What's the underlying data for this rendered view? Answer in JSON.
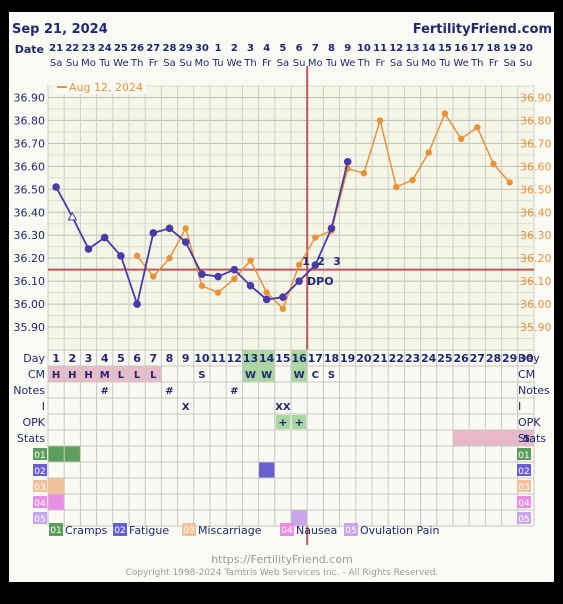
{
  "header": {
    "date": "Sep 21, 2024",
    "site": "FertilityFriend.com",
    "date_label": "Date"
  },
  "days_of_month": [
    "21",
    "22",
    "23",
    "24",
    "25",
    "26",
    "27",
    "28",
    "29",
    "30",
    "1",
    "2",
    "3",
    "4",
    "5",
    "6",
    "7",
    "8",
    "9",
    "10",
    "11",
    "12",
    "13",
    "14",
    "15",
    "16",
    "17",
    "18",
    "19",
    "20"
  ],
  "weekdays": [
    "Sa",
    "Su",
    "Mo",
    "Tu",
    "We",
    "Th",
    "Fr",
    "Sa",
    "Su",
    "Mo",
    "Tu",
    "We",
    "Th",
    "Fr",
    "Sa",
    "Su",
    "Mo",
    "Tu",
    "We",
    "Th",
    "Fr",
    "Sa",
    "Su",
    "Mo",
    "Tu",
    "We",
    "Th",
    "Fr",
    "Sa",
    "Su"
  ],
  "y_ticks": [
    "36.90",
    "36.80",
    "36.70",
    "36.60",
    "36.50",
    "36.40",
    "36.30",
    "36.20",
    "36.10",
    "36.00",
    "35.90"
  ],
  "legend_comparison": "Aug 12, 2024",
  "dpo_label": "DPO",
  "dpo_numbers": [
    "1",
    "2",
    "3"
  ],
  "row_labels": {
    "day": "Day",
    "cm": "CM",
    "notes": "Notes",
    "i": "I",
    "opk": "OPK",
    "stats": "Stats",
    "s1": "01",
    "s2": "02",
    "s3": "03",
    "s4": "04",
    "s5": "05"
  },
  "cycle_days": [
    "1",
    "2",
    "3",
    "4",
    "5",
    "6",
    "7",
    "8",
    "9",
    "10",
    "11",
    "12",
    "13",
    "14",
    "15",
    "16",
    "17",
    "18",
    "19",
    "20",
    "21",
    "22",
    "23",
    "24",
    "25",
    "26",
    "27",
    "28",
    "29",
    "30"
  ],
  "cm_values": [
    "H",
    "H",
    "H",
    "M",
    "L",
    "L",
    "L",
    "",
    "",
    "S",
    "",
    "",
    "W",
    "W",
    "",
    "W",
    "C",
    "S",
    "",
    "",
    "",
    "",
    "",
    "",
    "",
    "",
    "",
    "",
    "",
    ""
  ],
  "notes_marks": [
    "",
    "",
    "",
    "#",
    "",
    "",
    "",
    "#",
    "",
    "",
    "",
    "#",
    "",
    "",
    "",
    "",
    "",
    "",
    "",
    "",
    "",
    "",
    "",
    "",
    "",
    "",
    "",
    "",
    "",
    ""
  ],
  "i_marks": [
    "",
    "",
    "",
    "",
    "",
    "",
    "",
    "",
    "X",
    "",
    "",
    "",
    "",
    "",
    "XX",
    "",
    "",
    "",
    "",
    "",
    "",
    "",
    "",
    "",
    "",
    "",
    "",
    "",
    "",
    ""
  ],
  "opk_marks": [
    "",
    "",
    "",
    "",
    "",
    "",
    "",
    "",
    "",
    "",
    "",
    "",
    "",
    "",
    "+",
    "+",
    "",
    "",
    "",
    "",
    "",
    "",
    "",
    "",
    "",
    "",
    "",
    "",
    "",
    ""
  ],
  "stats_value": "5",
  "symptoms": [
    {
      "code": "01",
      "name": "Cramps",
      "color": "#5e9e5c"
    },
    {
      "code": "02",
      "name": "Fatigue",
      "color": "#6a5fd0"
    },
    {
      "code": "03",
      "name": "Miscarriage",
      "color": "#f2c19a"
    },
    {
      "code": "04",
      "name": "Nausea",
      "color": "#e98de6"
    },
    {
      "code": "05",
      "name": "Ovulation Pain",
      "color": "#c9a6ec"
    }
  ],
  "footer": {
    "url": "https://FertilityFriend.com",
    "copyright": "Copyright 1998-2024 Tamtris Web Services Inc. - All Rights Reserved."
  },
  "colors": {
    "current": "#4a3aa8",
    "comparison": "#e8923a",
    "coverline": "#c0565a",
    "ovulation": "#c0565a",
    "highlight": "#a8d8a0",
    "cm_fill": "#e8bcc8",
    "stats_fill": "#e8b8c8"
  },
  "chart_data": {
    "type": "line",
    "x_label": "Day",
    "ylim": [
      35.8,
      36.95
    ],
    "coverline": 36.15,
    "ovulation_day": 16,
    "highlighted_days": [
      13,
      14,
      16
    ],
    "series": [
      {
        "name": "",
        "role": "current",
        "points": [
          [
            1,
            36.51
          ],
          [
            2,
            36.38
          ],
          [
            3,
            36.24
          ],
          [
            4,
            36.29
          ],
          [
            5,
            36.21
          ],
          [
            6,
            36.0
          ],
          [
            7,
            36.31
          ],
          [
            8,
            36.33
          ],
          [
            9,
            36.27
          ],
          [
            10,
            36.13
          ],
          [
            11,
            36.12
          ],
          [
            12,
            36.15
          ],
          [
            13,
            36.08
          ],
          [
            14,
            36.02
          ],
          [
            15,
            36.03
          ],
          [
            16,
            36.1
          ],
          [
            17,
            36.17
          ],
          [
            18,
            36.33
          ],
          [
            19,
            36.62
          ]
        ],
        "open_points": [
          2
        ]
      },
      {
        "name": "Aug 12, 2024",
        "role": "comparison",
        "points": [
          [
            6,
            36.21
          ],
          [
            7,
            36.12
          ],
          [
            8,
            36.2
          ],
          [
            9,
            36.33
          ],
          [
            10,
            36.08
          ],
          [
            11,
            36.05
          ],
          [
            12,
            36.11
          ],
          [
            13,
            36.19
          ],
          [
            14,
            36.05
          ],
          [
            15,
            35.98
          ],
          [
            16,
            36.17
          ],
          [
            17,
            36.29
          ],
          [
            18,
            36.32
          ],
          [
            19,
            36.59
          ],
          [
            20,
            36.57
          ],
          [
            21,
            36.8
          ],
          [
            22,
            36.51
          ],
          [
            23,
            36.54
          ],
          [
            24,
            36.66
          ],
          [
            25,
            36.83
          ],
          [
            26,
            36.72
          ],
          [
            27,
            36.77
          ],
          [
            28,
            36.61
          ],
          [
            29,
            36.53
          ]
        ]
      }
    ],
    "symptom_blocks": [
      {
        "code": "01",
        "days": [
          1,
          2
        ]
      },
      {
        "code": "02",
        "days": [
          14
        ]
      },
      {
        "code": "03",
        "days": [
          1
        ]
      },
      {
        "code": "04",
        "days": [
          1
        ]
      },
      {
        "code": "05",
        "days": [
          16
        ]
      }
    ],
    "stats_highlight_days": [
      26,
      30
    ]
  }
}
